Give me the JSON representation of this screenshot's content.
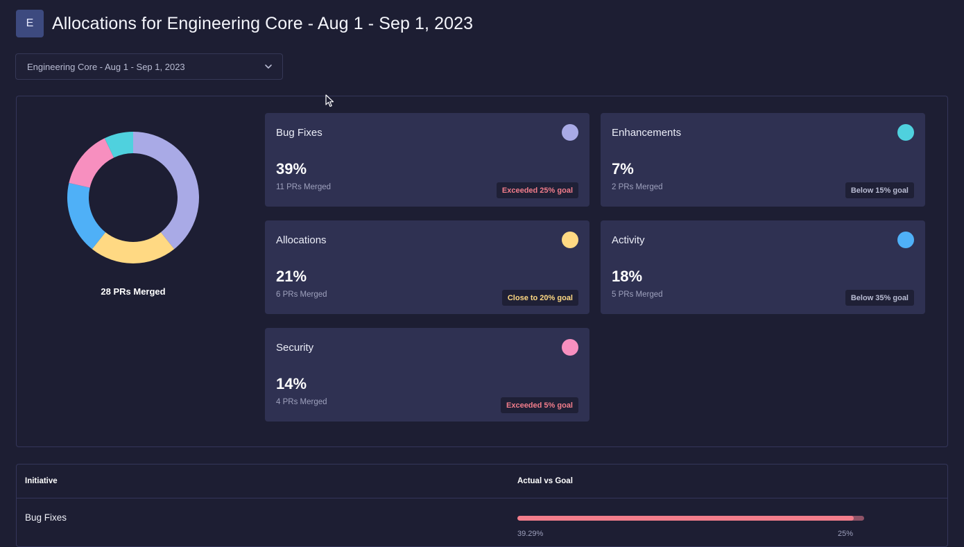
{
  "header": {
    "avatar_letter": "E",
    "title": "Allocations for Engineering Core - Aug 1 - Sep 1, 2023"
  },
  "filter": {
    "selected": "Engineering Core - Aug 1 - Sep 1, 2023",
    "icon": "chevron-down-icon"
  },
  "summary": {
    "total_label": "28 PRs Merged"
  },
  "chart_data": {
    "type": "pie",
    "variant": "donut",
    "categories": [
      "Bug Fixes",
      "Allocations",
      "Activity",
      "Security",
      "Enhancements"
    ],
    "values": [
      11,
      6,
      5,
      4,
      2
    ],
    "colors": [
      "#a9aae6",
      "#ffd983",
      "#4fb0f7",
      "#f78fbf",
      "#4fd1de"
    ],
    "total": 28
  },
  "cards": [
    {
      "title": "Bug Fixes",
      "percent": "39%",
      "subtitle": "11 PRs Merged",
      "badge": "Exceeded 25% goal",
      "badge_color": "#f27d8b",
      "dot_color": "#a9aae6"
    },
    {
      "title": "Enhancements",
      "percent": "7%",
      "subtitle": "2 PRs Merged",
      "badge": "Below 15% goal",
      "badge_color": "#b9bcd3",
      "dot_color": "#4fd1de"
    },
    {
      "title": "Allocations",
      "percent": "21%",
      "subtitle": "6 PRs Merged",
      "badge": "Close to 20% goal",
      "badge_color": "#ffd983",
      "dot_color": "#ffd983"
    },
    {
      "title": "Activity",
      "percent": "18%",
      "subtitle": "5 PRs Merged",
      "badge": "Below 35% goal",
      "badge_color": "#b9bcd3",
      "dot_color": "#4fb0f7"
    },
    {
      "title": "Security",
      "percent": "14%",
      "subtitle": "4 PRs Merged",
      "badge": "Exceeded 5% goal",
      "badge_color": "#f27d8b",
      "dot_color": "#f78fbf"
    }
  ],
  "table": {
    "headers": [
      "Initiative",
      "Actual vs Goal"
    ],
    "rows": [
      {
        "name": "Bug Fixes",
        "actual": "39.29%",
        "goal": "25%",
        "progress": 0.97
      }
    ]
  }
}
